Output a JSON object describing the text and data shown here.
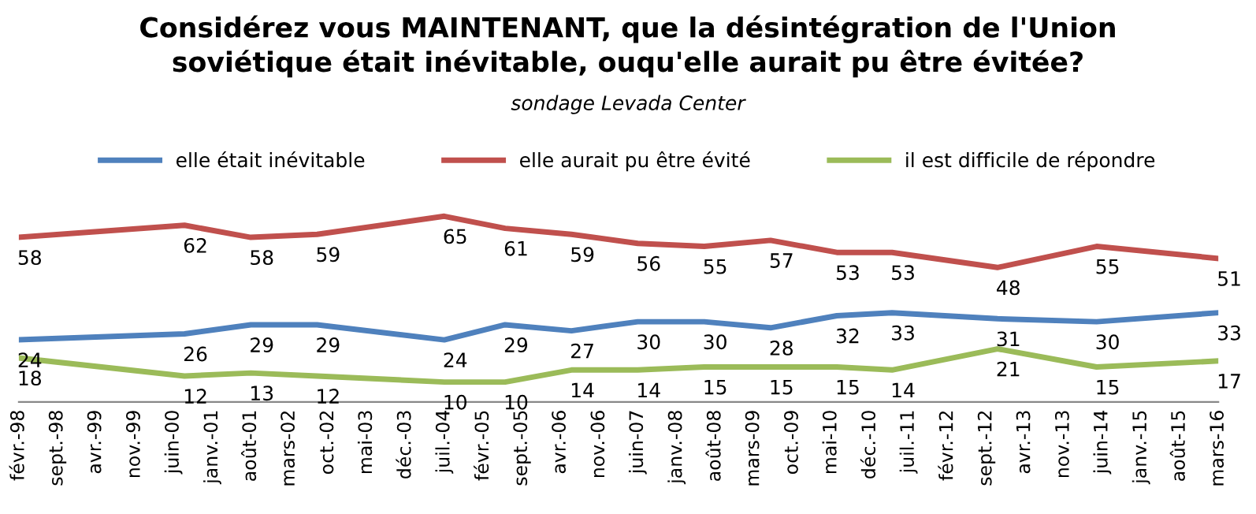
{
  "chart_data": {
    "type": "line",
    "title": "Considérez vous MAINTENANT, que la désintégration de l'Union\nsoviétique était inévitable, ouqu'elle aurait pu être évitée?",
    "subtitle": "sondage Levada Center",
    "x": [
      "1998-02",
      "2000-08",
      "2001-08",
      "2002-08",
      "2004-07",
      "2005-06",
      "2006-06",
      "2007-06",
      "2008-06",
      "2009-06",
      "2010-06",
      "2011-04",
      "2012-11",
      "2014-05",
      "2016-03"
    ],
    "series": [
      {
        "name": "elle était inévitable",
        "color": "#4f81bd",
        "values": [
          24,
          26,
          29,
          29,
          24,
          29,
          27,
          30,
          30,
          28,
          32,
          33,
          31,
          30,
          33
        ]
      },
      {
        "name": "elle aurait pu être évité",
        "color": "#c0504d",
        "values": [
          58,
          62,
          58,
          59,
          65,
          61,
          59,
          56,
          55,
          57,
          53,
          53,
          48,
          55,
          51
        ]
      },
      {
        "name": "il est difficile de répondre",
        "color": "#9bbb59",
        "values": [
          18,
          12,
          13,
          12,
          10,
          10,
          14,
          14,
          15,
          15,
          15,
          14,
          21,
          15,
          17
        ]
      }
    ],
    "xlim": [
      "1998-02",
      "2016-03"
    ],
    "xticks": [
      {
        "value": "1998-02",
        "label": "févr.-98"
      },
      {
        "value": "1998-09",
        "label": "sept.-98"
      },
      {
        "value": "1999-04",
        "label": "avr.-99"
      },
      {
        "value": "1999-11",
        "label": "nov.-99"
      },
      {
        "value": "2000-06",
        "label": "juin-00"
      },
      {
        "value": "2001-01",
        "label": "janv.-01"
      },
      {
        "value": "2001-08",
        "label": "août-01"
      },
      {
        "value": "2002-03",
        "label": "mars-02"
      },
      {
        "value": "2002-10",
        "label": "oct.-02"
      },
      {
        "value": "2003-05",
        "label": "mai-03"
      },
      {
        "value": "2003-12",
        "label": "déc.-03"
      },
      {
        "value": "2004-07",
        "label": "juil.-04"
      },
      {
        "value": "2005-02",
        "label": "févr.-05"
      },
      {
        "value": "2005-09",
        "label": "sept.-05"
      },
      {
        "value": "2006-04",
        "label": "avr.-06"
      },
      {
        "value": "2006-11",
        "label": "nov.-06"
      },
      {
        "value": "2007-06",
        "label": "juin-07"
      },
      {
        "value": "2008-01",
        "label": "janv.-08"
      },
      {
        "value": "2008-08",
        "label": "août-08"
      },
      {
        "value": "2009-03",
        "label": "mars-09"
      },
      {
        "value": "2009-10",
        "label": "oct.-09"
      },
      {
        "value": "2010-05",
        "label": "mai-10"
      },
      {
        "value": "2010-12",
        "label": "déc.-10"
      },
      {
        "value": "2011-07",
        "label": "juil.-11"
      },
      {
        "value": "2012-02",
        "label": "févr.-12"
      },
      {
        "value": "2012-09",
        "label": "sept.-12"
      },
      {
        "value": "2013-04",
        "label": "avr.-13"
      },
      {
        "value": "2013-11",
        "label": "nov.-13"
      },
      {
        "value": "2014-06",
        "label": "juin-14"
      },
      {
        "value": "2015-01",
        "label": "janv.-15"
      },
      {
        "value": "2015-08",
        "label": "août-15"
      },
      {
        "value": "2016-03",
        "label": "mars-16"
      }
    ],
    "tick_labels": "x",
    "data_labels": true,
    "legend": "top",
    "grid": false,
    "marker": "none",
    "line_style": "solid"
  }
}
